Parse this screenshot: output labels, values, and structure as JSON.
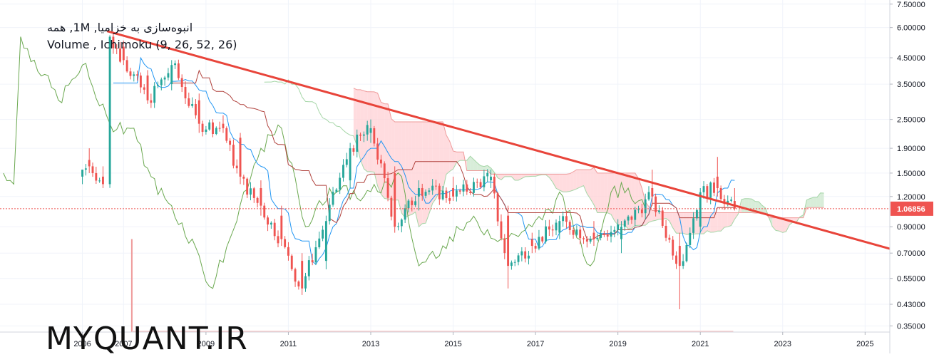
{
  "legend": {
    "line1": "انبوه‌سازی به خزامیا, 1M, همه",
    "line2": "Volume , Ichimoku (9, 26, 52, 26)"
  },
  "watermark": "MYQUANT.IR",
  "colors": {
    "up": "#26a69a",
    "down": "#ef5350",
    "trendline": "#e8443a",
    "conversion": "#2196f3",
    "base": "#b0423d",
    "lagging": "#6aa84f",
    "cloud_bull": "#c8e6c9",
    "cloud_bear": "#ffcdd2",
    "price_tag": "#ef5350",
    "grid": "#f0f3fa"
  },
  "chart_data": {
    "type": "candlestick",
    "scale": "log",
    "y_ticks": [
      "7.50000",
      "6.00000",
      "4.50000",
      "3.50000",
      "2.50000",
      "1.90000",
      "1.50000",
      "1.20000",
      "0.90000",
      "0.70000",
      "0.55000",
      "0.43000",
      "0.35000"
    ],
    "y_tick_values": [
      7.5,
      6.0,
      4.5,
      3.5,
      2.5,
      1.9,
      1.5,
      1.2,
      0.9,
      0.7,
      0.55,
      0.43,
      0.35
    ],
    "x_ticks": [
      "2006",
      "2007",
      "2009",
      "2011",
      "2013",
      "2015",
      "2017",
      "2019",
      "2021",
      "2023",
      "2025"
    ],
    "x_tick_values": [
      2006.0,
      2007.0,
      2009.0,
      2011.0,
      2013.0,
      2015.0,
      2017.0,
      2019.0,
      2021.0,
      2023.0,
      2025.0
    ],
    "ylim": [
      0.33,
      7.8
    ],
    "xlim": [
      2004.0,
      2025.6
    ],
    "last_price": "1.06856",
    "last_price_value": 1.06856,
    "trendline": {
      "x": [
        2006.6,
        2025.6
      ],
      "y": [
        5.8,
        0.73
      ]
    },
    "ohlc_samples": [
      {
        "x": 2006.0,
        "o": 1.45,
        "h": 1.55,
        "l": 1.35,
        "c": 1.55
      },
      {
        "x": 2006.2,
        "o": 1.7,
        "h": 1.9,
        "l": 1.5,
        "c": 1.6
      },
      {
        "x": 2006.5,
        "o": 1.45,
        "h": 1.6,
        "l": 1.3,
        "c": 1.35
      },
      {
        "x": 2006.6,
        "o": 1.4,
        "h": 5.8,
        "l": 1.35,
        "c": 5.6
      },
      {
        "x": 2007.0,
        "o": 5.0,
        "h": 5.3,
        "l": 4.2,
        "c": 4.4
      },
      {
        "x": 2007.6,
        "o": 3.8,
        "h": 4.0,
        "l": 2.9,
        "c": 3.0
      },
      {
        "x": 2008.2,
        "o": 3.5,
        "h": 4.4,
        "l": 3.3,
        "c": 4.2
      },
      {
        "x": 2008.8,
        "o": 3.0,
        "h": 3.2,
        "l": 2.2,
        "c": 2.4
      },
      {
        "x": 2009.4,
        "o": 2.4,
        "h": 2.6,
        "l": 2.2,
        "c": 2.3
      },
      {
        "x": 2009.8,
        "o": 2.1,
        "h": 2.2,
        "l": 1.35,
        "c": 1.45
      },
      {
        "x": 2010.3,
        "o": 1.3,
        "h": 1.4,
        "l": 1.0,
        "c": 1.1
      },
      {
        "x": 2010.8,
        "o": 1.0,
        "h": 1.1,
        "l": 0.75,
        "c": 0.8
      },
      {
        "x": 2011.3,
        "o": 0.65,
        "h": 0.7,
        "l": 0.47,
        "c": 0.5
      },
      {
        "x": 2011.9,
        "o": 0.65,
        "h": 1.0,
        "l": 0.6,
        "c": 0.95
      },
      {
        "x": 2012.5,
        "o": 1.4,
        "h": 2.0,
        "l": 1.3,
        "c": 1.9
      },
      {
        "x": 2013.0,
        "o": 2.2,
        "h": 2.5,
        "l": 2.0,
        "c": 2.3
      },
      {
        "x": 2013.6,
        "o": 1.5,
        "h": 1.6,
        "l": 0.85,
        "c": 0.9
      },
      {
        "x": 2014.2,
        "o": 1.2,
        "h": 1.4,
        "l": 1.05,
        "c": 1.3
      },
      {
        "x": 2015.0,
        "o": 1.3,
        "h": 1.45,
        "l": 1.15,
        "c": 1.2
      },
      {
        "x": 2015.9,
        "o": 1.4,
        "h": 1.55,
        "l": 1.3,
        "c": 1.45
      },
      {
        "x": 2016.3,
        "o": 1.0,
        "h": 1.1,
        "l": 0.5,
        "c": 0.62
      },
      {
        "x": 2016.9,
        "o": 0.8,
        "h": 0.85,
        "l": 0.7,
        "c": 0.75
      },
      {
        "x": 2017.6,
        "o": 0.85,
        "h": 1.0,
        "l": 0.8,
        "c": 0.95
      },
      {
        "x": 2018.4,
        "o": 0.85,
        "h": 0.95,
        "l": 0.75,
        "c": 0.8
      },
      {
        "x": 2019.1,
        "o": 0.8,
        "h": 0.95,
        "l": 0.7,
        "c": 0.9
      },
      {
        "x": 2019.8,
        "o": 1.3,
        "h": 1.55,
        "l": 1.1,
        "c": 1.2
      },
      {
        "x": 2020.5,
        "o": 0.75,
        "h": 0.85,
        "l": 0.41,
        "c": 0.62
      },
      {
        "x": 2021.0,
        "o": 0.9,
        "h": 1.3,
        "l": 0.85,
        "c": 1.25
      },
      {
        "x": 2021.4,
        "o": 1.45,
        "h": 1.75,
        "l": 1.2,
        "c": 1.3
      },
      {
        "x": 2021.8,
        "o": 1.15,
        "h": 1.3,
        "l": 1.05,
        "c": 1.07
      }
    ],
    "volume_spike": {
      "x": 2007.2,
      "relative_height": 0.28
    }
  }
}
